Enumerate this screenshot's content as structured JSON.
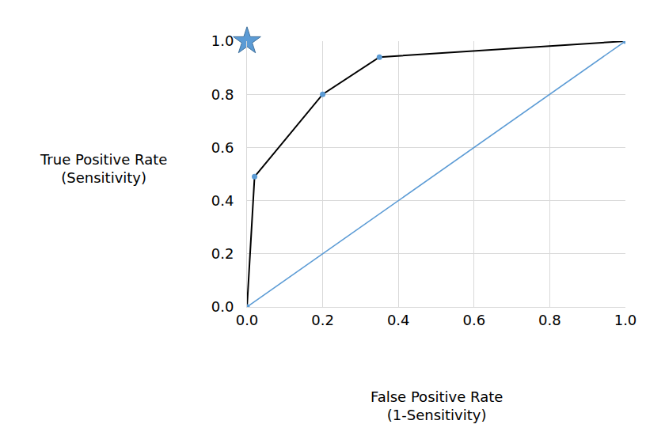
{
  "chart_data": {
    "type": "line",
    "x_label": "False Positive Rate\n(1-Sensitivity)",
    "y_label": "True Positive Rate\n(Sensitivity)",
    "series": [
      {
        "type": "line",
        "color": "#000000",
        "marker": "circle",
        "line_style": "solid",
        "x": [
          0,
          0.02,
          0.2,
          0.35,
          1
        ],
        "values": [
          0,
          0.49,
          0.8,
          0.94,
          1
        ]
      },
      {
        "type": "line",
        "color": "#5b9bd5",
        "line_style": "solid",
        "x": [
          0,
          1
        ],
        "values": [
          0,
          1
        ]
      },
      {
        "type": "scatter",
        "color": "#5b9bd5",
        "marker": "star",
        "x": [
          0
        ],
        "values": [
          1
        ]
      }
    ],
    "xlim": [
      0,
      1
    ],
    "ylim": [
      0,
      1
    ],
    "xticks": [
      {
        "value": 0,
        "label": "0.0"
      },
      0.2,
      0.4,
      0.6,
      0.8,
      {
        "value": 1,
        "label": "1.0"
      }
    ],
    "yticks": [
      {
        "value": 0,
        "label": "0.0"
      },
      0.2,
      0.4,
      0.6,
      0.8,
      {
        "value": 1,
        "label": "1.0"
      }
    ],
    "grid": true
  }
}
